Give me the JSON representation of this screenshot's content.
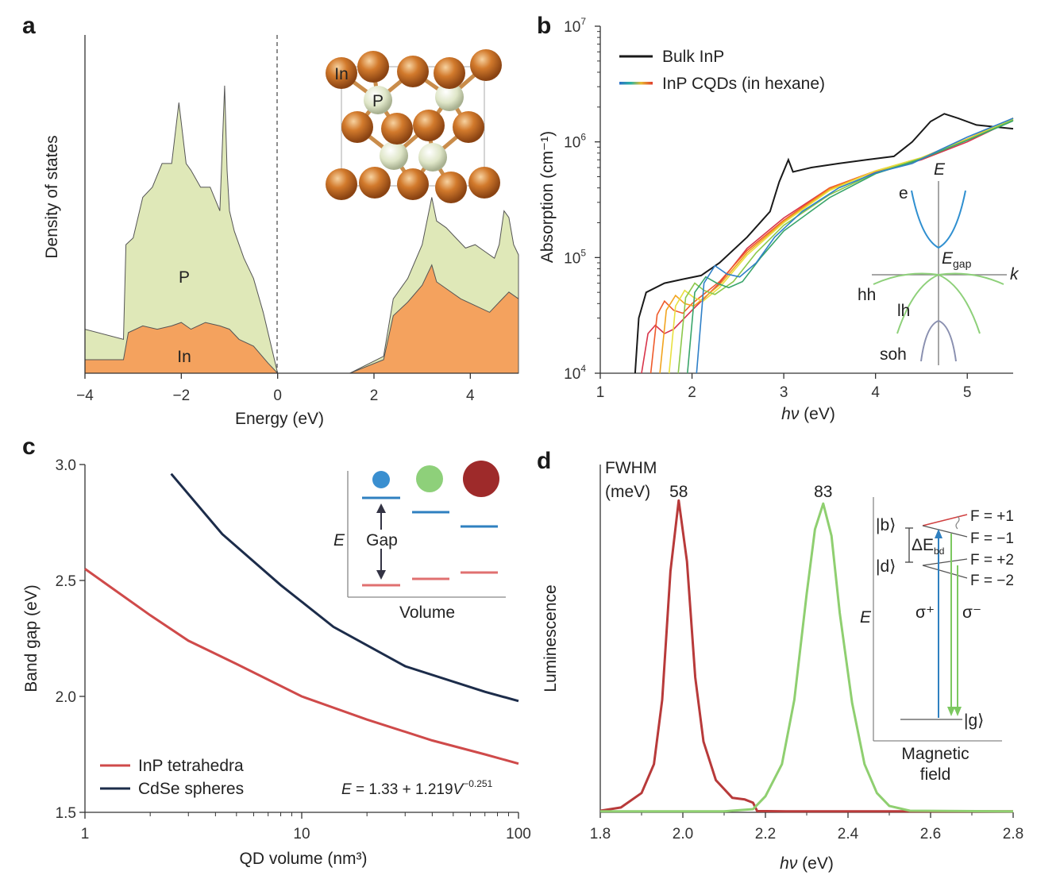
{
  "panels": {
    "a": {
      "letter": "a"
    },
    "b": {
      "letter": "b"
    },
    "c": {
      "letter": "c"
    },
    "d": {
      "letter": "d"
    }
  },
  "chart_data": [
    {
      "id": "a",
      "type": "area",
      "xlabel": "Energy (eV)",
      "ylabel": "Density of states",
      "xlim": [
        -4,
        5
      ],
      "x_ticks": [
        "−4",
        "−2",
        "0",
        "2",
        "4"
      ],
      "x_tick_values": [
        -4,
        -2,
        0,
        2,
        4
      ],
      "fermi_level": 0,
      "series": [
        {
          "name": "P",
          "color": "#dfe8b8",
          "x": [
            -4,
            -3.2,
            -3.15,
            -3.0,
            -2.8,
            -2.6,
            -2.4,
            -2.2,
            -2.05,
            -1.9,
            -1.8,
            -1.6,
            -1.4,
            -1.2,
            -1.1,
            -1.05,
            -1.0,
            -0.9,
            -0.7,
            -0.5,
            -0.3,
            -0.1,
            0.0
          ],
          "values": [
            0.13,
            0.1,
            0.38,
            0.4,
            0.52,
            0.55,
            0.62,
            0.62,
            0.8,
            0.62,
            0.6,
            0.55,
            0.55,
            0.48,
            0.85,
            0.6,
            0.48,
            0.42,
            0.34,
            0.28,
            0.18,
            0.06,
            0.0
          ]
        },
        {
          "name": "P",
          "color": "#dfe8b8",
          "x": [
            1.5,
            2.2,
            2.4,
            2.7,
            3.0,
            3.2,
            3.3,
            3.5,
            3.7,
            3.9,
            4.1,
            4.3,
            4.5,
            4.6,
            4.7,
            4.8,
            4.9,
            5.0
          ],
          "values": [
            0.0,
            0.05,
            0.22,
            0.28,
            0.38,
            0.52,
            0.45,
            0.43,
            0.4,
            0.37,
            0.38,
            0.36,
            0.34,
            0.38,
            0.48,
            0.46,
            0.38,
            0.35
          ]
        },
        {
          "name": "In",
          "color": "#f4a25e",
          "x": [
            -4,
            -3.2,
            -3.1,
            -2.8,
            -2.5,
            -2.2,
            -2.0,
            -1.8,
            -1.5,
            -1.2,
            -1.0,
            -0.8,
            -0.5,
            -0.2,
            0.0
          ],
          "values": [
            0.04,
            0.04,
            0.12,
            0.14,
            0.13,
            0.14,
            0.15,
            0.13,
            0.15,
            0.14,
            0.13,
            0.1,
            0.08,
            0.03,
            0.0
          ]
        },
        {
          "name": "In",
          "color": "#f4a25e",
          "x": [
            1.5,
            2.2,
            2.4,
            2.7,
            3.0,
            3.2,
            3.3,
            3.5,
            3.8,
            4.1,
            4.4,
            4.6,
            4.8,
            5.0
          ],
          "values": [
            0.0,
            0.04,
            0.17,
            0.21,
            0.26,
            0.32,
            0.27,
            0.25,
            0.22,
            0.2,
            0.18,
            0.21,
            0.24,
            0.22
          ]
        }
      ],
      "annotations": {
        "p_label": "P",
        "in_label": "In"
      },
      "inset": {
        "atom_in": "In",
        "atom_p": "P",
        "color_in": "#c96a22",
        "color_p": "#dfe6c8"
      }
    },
    {
      "id": "b",
      "type": "line",
      "xlabel_italic": "hν",
      "xlabel_unit": " (eV)",
      "ylabel": "Absorption (cm⁻¹)",
      "xlim": [
        1,
        5.5
      ],
      "ylim": [
        10000,
        10000000
      ],
      "yscale": "log",
      "x_ticks": [
        "1",
        "2",
        "3",
        "4",
        "5"
      ],
      "x_tick_values": [
        1,
        2,
        3,
        4,
        5
      ],
      "y_ticks": [
        {
          "base": "10",
          "exp": "4",
          "value": 10000
        },
        {
          "base": "10",
          "exp": "5",
          "value": 100000
        },
        {
          "base": "10",
          "exp": "6",
          "value": 1000000
        },
        {
          "base": "10",
          "exp": "7",
          "value": 10000000
        }
      ],
      "legend": [
        {
          "name": "Bulk InP",
          "color": "#1a1a1a"
        },
        {
          "name": "InP CQDs (in hexane)",
          "gradient": [
            "#2b6fc9",
            "#2bb3a0",
            "#e8b830",
            "#e03c2c"
          ]
        }
      ],
      "series": [
        {
          "name": "Bulk InP",
          "color": "#1a1a1a",
          "x": [
            1.38,
            1.42,
            1.5,
            1.7,
            1.9,
            2.1,
            2.3,
            2.6,
            2.85,
            2.95,
            3.05,
            3.1,
            3.3,
            3.6,
            3.9,
            4.2,
            4.4,
            4.6,
            4.75,
            4.9,
            5.1,
            5.3,
            5.5
          ],
          "values": [
            10000,
            30000,
            50000,
            60000,
            65000,
            70000,
            90000,
            150000,
            250000,
            450000,
            700000,
            550000,
            600000,
            650000,
            700000,
            750000,
            1000000,
            1500000,
            1750000,
            1600000,
            1400000,
            1350000,
            1300000
          ]
        },
        {
          "name": "",
          "color": "#d8344a",
          "x": [
            1.45,
            1.52,
            1.6,
            1.7,
            1.8,
            2.0,
            2.3,
            2.6,
            3.0,
            3.5,
            4.0,
            4.5,
            5.0,
            5.5
          ],
          "values": [
            10000,
            22000,
            26000,
            22000,
            24000,
            35000,
            60000,
            120000,
            220000,
            400000,
            550000,
            700000,
            1000000,
            1550000
          ]
        },
        {
          "name": "",
          "color": "#ef5a2a",
          "x": [
            1.55,
            1.62,
            1.7,
            1.8,
            1.9,
            2.0,
            2.3,
            2.6,
            3.0,
            3.5,
            4.0,
            4.5,
            5.0,
            5.5
          ],
          "values": [
            10000,
            32000,
            42000,
            35000,
            33000,
            40000,
            62000,
            115000,
            210000,
            400000,
            560000,
            720000,
            1050000,
            1600000
          ]
        },
        {
          "name": "",
          "color": "#f2a41f",
          "x": [
            1.65,
            1.72,
            1.82,
            1.92,
            2.02,
            2.3,
            2.6,
            3.0,
            3.5,
            4.0,
            4.5,
            5.0,
            5.5
          ],
          "values": [
            10000,
            35000,
            47000,
            40000,
            38000,
            58000,
            110000,
            205000,
            390000,
            560000,
            730000,
            1060000,
            1600000
          ]
        },
        {
          "name": "",
          "color": "#e8e040",
          "x": [
            1.75,
            1.82,
            1.92,
            2.02,
            2.12,
            2.3,
            2.6,
            3.0,
            3.5,
            4.0,
            4.5,
            5.0,
            5.5
          ],
          "values": [
            10000,
            38000,
            52000,
            45000,
            42000,
            55000,
            105000,
            200000,
            380000,
            560000,
            730000,
            1050000,
            1580000
          ]
        },
        {
          "name": "",
          "color": "#8cc84b",
          "x": [
            1.85,
            1.93,
            2.03,
            2.13,
            2.25,
            2.45,
            2.7,
            3.0,
            3.5,
            4.0,
            4.5,
            5.0,
            5.5
          ],
          "values": [
            10000,
            45000,
            60000,
            52000,
            48000,
            62000,
            110000,
            190000,
            350000,
            540000,
            720000,
            1040000,
            1550000
          ]
        },
        {
          "name": "",
          "color": "#3aa56a",
          "x": [
            1.95,
            2.03,
            2.15,
            2.27,
            2.4,
            2.55,
            2.75,
            3.0,
            3.5,
            4.0,
            4.5,
            5.0,
            5.5
          ],
          "values": [
            10000,
            50000,
            68000,
            60000,
            55000,
            62000,
            100000,
            170000,
            330000,
            530000,
            710000,
            1030000,
            1520000
          ]
        },
        {
          "name": "",
          "color": "#2f80c8",
          "x": [
            2.05,
            2.13,
            2.25,
            2.38,
            2.52,
            2.7,
            2.9,
            3.2,
            3.6,
            4.0,
            4.4,
            4.7,
            5.0,
            5.5
          ],
          "values": [
            10000,
            60000,
            85000,
            72000,
            68000,
            90000,
            150000,
            250000,
            400000,
            540000,
            650000,
            850000,
            1100000,
            1600000
          ]
        }
      ],
      "inset": {
        "E": "E",
        "e": "e",
        "Egap_main": "E",
        "Egap_sub": "gap",
        "k": "k",
        "hh": "hh",
        "lh": "lh",
        "soh": "soh"
      }
    },
    {
      "id": "c",
      "type": "line",
      "xlabel": "QD volume (nm³)",
      "ylabel": "Band gap (eV)",
      "xscale": "log",
      "xlim": [
        1,
        100
      ],
      "ylim": [
        1.5,
        3.0
      ],
      "x_ticks": [
        "1",
        "10",
        "100"
      ],
      "x_tick_values": [
        1,
        10,
        100
      ],
      "y_ticks": [
        "1.5",
        "2.0",
        "2.5",
        "3.0"
      ],
      "y_tick_values": [
        1.5,
        2.0,
        2.5,
        3.0
      ],
      "legend": [
        {
          "name": "InP tetrahedra",
          "color": "#cf4a4a"
        },
        {
          "name": "CdSe spheres",
          "color": "#1c2c4a"
        }
      ],
      "series": [
        {
          "name": "InP tetrahedra",
          "color": "#cf4a4a",
          "x": [
            1,
            2,
            3,
            5,
            10,
            20,
            40,
            70,
            100
          ],
          "values": [
            2.55,
            2.35,
            2.24,
            2.14,
            2.0,
            1.9,
            1.81,
            1.75,
            1.71
          ]
        },
        {
          "name": "CdSe spheres",
          "color": "#1c2c4a",
          "x": [
            2.5,
            4.3,
            8,
            14,
            30,
            70,
            100
          ],
          "values": [
            2.96,
            2.7,
            2.48,
            2.3,
            2.13,
            2.02,
            1.98
          ]
        }
      ],
      "equation": {
        "prefix": "E",
        "body": " = 1.33 + 1.219",
        "var": "V",
        "exp": "−0.251"
      },
      "inset": {
        "E": "E",
        "gap": "Gap",
        "volume": "Volume",
        "dot_colors": [
          "#3a8fd0",
          "#8ed07a",
          "#9e2a2a"
        ]
      }
    },
    {
      "id": "d",
      "type": "line",
      "xlabel_italic": "hν",
      "xlabel_unit": " (eV)",
      "ylabel": "Luminescence",
      "xlim": [
        1.8,
        2.8
      ],
      "x_ticks": [
        "1.8",
        "2.0",
        "2.2",
        "2.4",
        "2.6",
        "2.8"
      ],
      "x_tick_values": [
        1.8,
        2.0,
        2.2,
        2.4,
        2.6,
        2.8
      ],
      "fwhm_label_1": "FWHM",
      "fwhm_label_2": "(meV)",
      "peaks": [
        {
          "value": "58",
          "position": 1.99
        },
        {
          "value": "83",
          "position": 2.34
        }
      ],
      "series": [
        {
          "name": "",
          "color": "#b83a3a",
          "x": [
            1.8,
            1.85,
            1.9,
            1.93,
            1.95,
            1.97,
            1.99,
            2.01,
            2.03,
            2.05,
            2.08,
            2.12,
            2.15,
            2.17,
            2.18,
            2.25,
            2.8
          ],
          "values": [
            0.005,
            0.015,
            0.06,
            0.15,
            0.35,
            0.75,
            0.97,
            0.78,
            0.42,
            0.22,
            0.1,
            0.045,
            0.04,
            0.03,
            0.004,
            0.003,
            0.003
          ]
        },
        {
          "name": "",
          "color": "#8fcf70",
          "x": [
            1.8,
            2.1,
            2.17,
            2.2,
            2.24,
            2.27,
            2.3,
            2.32,
            2.34,
            2.36,
            2.38,
            2.41,
            2.44,
            2.47,
            2.5,
            2.55,
            2.8
          ],
          "values": [
            0.003,
            0.003,
            0.01,
            0.05,
            0.15,
            0.35,
            0.68,
            0.88,
            0.96,
            0.86,
            0.62,
            0.34,
            0.15,
            0.06,
            0.02,
            0.005,
            0.003
          ]
        }
      ],
      "inset": {
        "b": "|b⟩",
        "d": "|d⟩",
        "g": "|g⟩",
        "E": "E",
        "dE": "ΔE",
        "dE_sub": "bd",
        "F1": "F = +1",
        "F2": "F = −1",
        "F3": "F = +2",
        "F4": "F = −2",
        "sigma_plus": "σ⁺",
        "sigma_minus": "σ⁻",
        "mag1": "Magnetic",
        "mag2": "field"
      }
    }
  ]
}
